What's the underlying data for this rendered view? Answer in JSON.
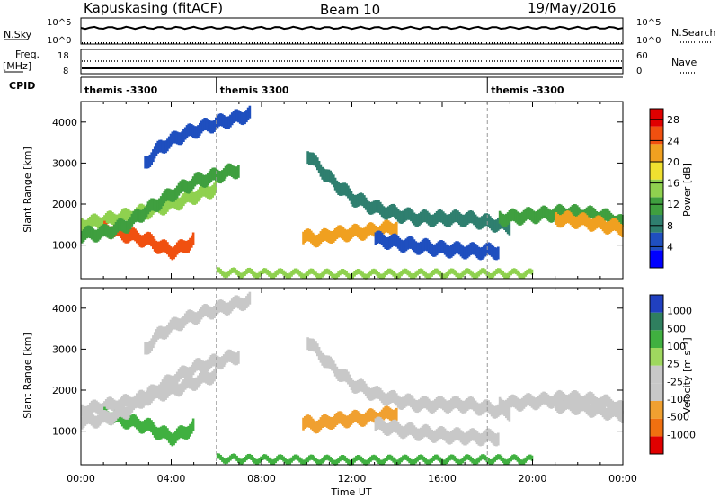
{
  "header": {
    "site": "Kapuskasing (fitACF)",
    "beam": "Beam 10",
    "date": "19/May/2016"
  },
  "top_panels": {
    "nsky_label": "N.Sky",
    "nsky_ticks": [
      "10^5",
      "10^0"
    ],
    "nsearch_label": "N.Search",
    "nsearch_ticks": [
      "10^5",
      "10^0"
    ],
    "freq_label": "Freq.",
    "freq_unit": "[MHz]",
    "freq_ticks": [
      "18",
      "8"
    ],
    "nave_label": "Nave",
    "nave_ticks": [
      "60",
      "0"
    ],
    "cpid_label": "CPID",
    "cpid_segments": [
      {
        "start_hour": 0.0,
        "label": "themis -3300"
      },
      {
        "start_hour": 6.0,
        "label": "themis 3300"
      },
      {
        "start_hour": 18.0,
        "label": "themis -3300"
      }
    ]
  },
  "x_axis": {
    "title": "Time UT",
    "tick_labels": [
      "00:00",
      "04:00",
      "08:00",
      "12:00",
      "16:00",
      "20:00",
      "00:00"
    ],
    "range_hours": [
      0,
      24
    ]
  },
  "colors": {
    "power_scale": [
      "#0000ff",
      "#1f4fbf",
      "#2f7f6f",
      "#3f9f3f",
      "#8fd14f",
      "#f0e030",
      "#f0a020",
      "#f05010",
      "#e00000"
    ],
    "velocity_scale": [
      "#2040c0",
      "#2f7f5f",
      "#40b040",
      "#9fd85f",
      "#c8c8c8",
      "#c8c8c8",
      "#f0a030",
      "#f07010",
      "#e00000"
    ]
  },
  "chart_data": [
    {
      "type": "heatmap",
      "title": "",
      "xlabel": "",
      "ylabel": "Slant Range [km]",
      "xlim": [
        0,
        24
      ],
      "ylim": [
        180,
        4500
      ],
      "y_ticks": [
        1000,
        2000,
        3000,
        4000
      ],
      "colorbar": {
        "label": "Power [dB]",
        "ticks": [
          4,
          8,
          12,
          16,
          20,
          24,
          28
        ],
        "range": [
          0,
          30
        ]
      },
      "features": [
        {
          "x": [
            0.0,
            0.5,
            1.0,
            2.0,
            3.0,
            4.0,
            4.5,
            5.0,
            5.5,
            6.0
          ],
          "y": [
            1500,
            1550,
            1600,
            1700,
            1850,
            2000,
            2100,
            2200,
            2300,
            2400
          ],
          "level": 14
        },
        {
          "x": [
            1.0,
            2.0,
            3.0,
            3.5,
            4.0,
            4.5,
            5.0
          ],
          "y": [
            1400,
            1250,
            1100,
            950,
            850,
            950,
            1150
          ],
          "level": 26
        },
        {
          "x": [
            2.8,
            3.5,
            4.5,
            5.5,
            6.5,
            7.5
          ],
          "y": [
            3000,
            3400,
            3700,
            3900,
            4050,
            4200
          ],
          "level": 6
        },
        {
          "x": [
            0.0,
            1.0,
            2.0,
            3.0,
            4.0,
            5.0,
            6.0,
            7.0
          ],
          "y": [
            1250,
            1300,
            1500,
            1900,
            2250,
            2550,
            2700,
            2850
          ],
          "level": 10
        },
        {
          "x": [
            10.0,
            11.0,
            12.0,
            13.0,
            14.0,
            15.0,
            16.0,
            17.0,
            18.0,
            19.0
          ],
          "y": [
            3200,
            2600,
            2150,
            1900,
            1750,
            1650,
            1650,
            1650,
            1550,
            1450
          ],
          "level": 8
        },
        {
          "x": [
            9.8,
            10.5,
            11.0,
            12.0,
            13.0,
            14.0
          ],
          "y": [
            1200,
            1150,
            1250,
            1300,
            1350,
            1450
          ],
          "level": 20
        },
        {
          "x": [
            13.0,
            14.5,
            16.0,
            17.5,
            18.5
          ],
          "y": [
            1150,
            1000,
            900,
            850,
            850
          ],
          "level": 6
        },
        {
          "x": [
            18.5,
            19.5,
            20.5,
            21.5,
            22.5,
            23.5,
            24.0
          ],
          "y": [
            1650,
            1700,
            1750,
            1800,
            1750,
            1650,
            1500
          ],
          "level": 10
        },
        {
          "x": [
            21.0,
            22.0,
            23.0,
            24.0
          ],
          "y": [
            1650,
            1600,
            1500,
            1400
          ],
          "level": 22
        },
        {
          "x": [
            6.0,
            8.0,
            10.0,
            12.0,
            14.0,
            16.0,
            18.0,
            20.0
          ],
          "y": [
            330,
            310,
            300,
            290,
            300,
            300,
            310,
            300
          ],
          "level": 16
        }
      ]
    },
    {
      "type": "heatmap",
      "title": "",
      "xlabel": "Time UT",
      "ylabel": "Slant Range [km]",
      "xlim": [
        0,
        24
      ],
      "ylim": [
        180,
        4500
      ],
      "y_ticks": [
        1000,
        2000,
        3000,
        4000
      ],
      "colorbar": {
        "label": "Velocity [m s⁻¹]",
        "ticks": [
          1000,
          500,
          100,
          25,
          -25,
          -100,
          -500,
          -1000
        ],
        "range": [
          -1000,
          1000
        ]
      },
      "features": [
        {
          "x": [
            0.0,
            0.5,
            1.0,
            2.0,
            3.0,
            4.0,
            4.5,
            5.0,
            5.5,
            6.0
          ],
          "y": [
            1500,
            1550,
            1600,
            1700,
            1850,
            2000,
            2100,
            2200,
            2300,
            2400
          ],
          "level": 0
        },
        {
          "x": [
            1.0,
            2.0,
            3.0,
            3.5,
            4.0,
            4.5,
            5.0
          ],
          "y": [
            1400,
            1250,
            1100,
            950,
            850,
            950,
            1150
          ],
          "level": 80
        },
        {
          "x": [
            2.8,
            3.5,
            4.5,
            5.5,
            6.5,
            7.5
          ],
          "y": [
            3000,
            3400,
            3700,
            3900,
            4050,
            4200
          ],
          "level": 0
        },
        {
          "x": [
            0.0,
            1.0,
            2.0,
            3.0,
            4.0,
            5.0,
            6.0,
            7.0
          ],
          "y": [
            1250,
            1300,
            1500,
            1900,
            2250,
            2550,
            2700,
            2850
          ],
          "level": 0
        },
        {
          "x": [
            10.0,
            11.0,
            12.0,
            13.0,
            14.0,
            15.0,
            16.0,
            17.0,
            18.0,
            19.0
          ],
          "y": [
            3200,
            2600,
            2150,
            1900,
            1750,
            1650,
            1650,
            1650,
            1550,
            1450
          ],
          "level": 0
        },
        {
          "x": [
            9.8,
            10.5,
            11.0,
            12.0,
            13.0,
            14.0
          ],
          "y": [
            1200,
            1150,
            1250,
            1300,
            1350,
            1450
          ],
          "level": -150
        },
        {
          "x": [
            13.0,
            14.5,
            16.0,
            17.5,
            18.5
          ],
          "y": [
            1150,
            1000,
            900,
            850,
            850
          ],
          "level": 0
        },
        {
          "x": [
            18.5,
            19.5,
            20.5,
            21.5,
            22.5,
            23.5,
            24.0
          ],
          "y": [
            1650,
            1700,
            1750,
            1800,
            1750,
            1650,
            1500
          ],
          "level": 0
        },
        {
          "x": [
            21.0,
            22.0,
            23.0,
            24.0
          ],
          "y": [
            1650,
            1600,
            1500,
            1400
          ],
          "level": 0
        },
        {
          "x": [
            6.0,
            8.0,
            10.0,
            12.0,
            14.0,
            16.0,
            18.0,
            20.0
          ],
          "y": [
            330,
            310,
            300,
            290,
            300,
            300,
            310,
            300
          ],
          "level": 60
        }
      ]
    }
  ]
}
